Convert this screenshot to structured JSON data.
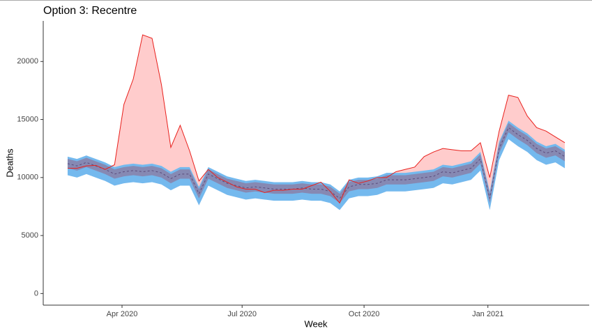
{
  "chart_data": {
    "type": "band-area",
    "title": "Option 3: Recentre",
    "xlabel": "Week",
    "ylabel": "Deaths",
    "x": [
      1,
      2,
      3,
      4,
      5,
      6,
      7,
      8,
      9,
      10,
      11,
      12,
      13,
      14,
      15,
      16,
      17,
      18,
      19,
      20,
      21,
      22,
      23,
      24,
      25,
      26,
      27,
      28,
      29,
      30,
      31,
      32,
      33,
      34,
      35,
      36,
      37,
      38,
      39,
      40,
      41,
      42,
      43,
      44,
      45,
      46,
      47,
      48,
      49,
      50,
      51,
      52,
      53,
      54
    ],
    "xlim": [
      -1.6,
      56.6
    ],
    "xticks": [
      {
        "value": 6.8,
        "label": "Apr 2020"
      },
      {
        "value": 19.6,
        "label": "Jul 2020"
      },
      {
        "value": 32.6,
        "label": "Oct 2020"
      },
      {
        "value": 45.8,
        "label": "Jan 2021"
      }
    ],
    "ylim": [
      -1000,
      23500
    ],
    "yticks": [
      0,
      5000,
      10000,
      15000,
      20000
    ],
    "actual": {
      "color": "#e8201c",
      "fill": "#ffcccc",
      "values": [
        10800,
        10800,
        11000,
        11050,
        10700,
        11100,
        16300,
        18500,
        22300,
        22000,
        18000,
        12600,
        14500,
        12300,
        9700,
        10700,
        10000,
        9600,
        9200,
        9000,
        9000,
        8700,
        8900,
        8900,
        9000,
        9000,
        9300,
        9600,
        8800,
        7800,
        9800,
        9500,
        9700,
        10000,
        10000,
        10500,
        10700,
        10900,
        11800,
        12200,
        12500,
        12400,
        12300,
        12300,
        13000,
        10000,
        14000,
        17100,
        16900,
        15300,
        14300,
        14000,
        13500,
        13000
      ]
    },
    "expected": {
      "color": "#5a4a7a",
      "values": [
        11200,
        11000,
        11300,
        11000,
        10700,
        10300,
        10500,
        10600,
        10500,
        10600,
        10400,
        9900,
        10300,
        10300,
        8600,
        10300,
        9900,
        9500,
        9300,
        9100,
        9200,
        9100,
        9000,
        9000,
        9000,
        9100,
        9000,
        9000,
        8800,
        8200,
        9200,
        9400,
        9400,
        9500,
        9800,
        9800,
        9800,
        9900,
        10000,
        10100,
        10500,
        10400,
        10600,
        10800,
        11600,
        8200,
        12500,
        14300,
        13700,
        13200,
        12500,
        12100,
        12300,
        11800
      ]
    },
    "bands": [
      {
        "color": "#74b9ee",
        "lower": [
          10200,
          10000,
          10300,
          10000,
          9700,
          9300,
          9500,
          9600,
          9500,
          9600,
          9400,
          8900,
          9300,
          9300,
          7600,
          9300,
          8900,
          8500,
          8300,
          8100,
          8200,
          8100,
          8000,
          8000,
          8000,
          8100,
          8000,
          8000,
          7800,
          7200,
          8200,
          8400,
          8400,
          8500,
          8800,
          8800,
          8800,
          8900,
          9000,
          9100,
          9500,
          9400,
          9600,
          9800,
          10600,
          7200,
          11500,
          13300,
          12700,
          12200,
          11500,
          11100,
          11300,
          10800
        ],
        "upper": [
          11800,
          11600,
          11900,
          11600,
          11300,
          10900,
          11100,
          11200,
          11100,
          11200,
          11000,
          10500,
          10900,
          10900,
          9200,
          10900,
          10500,
          10100,
          9900,
          9700,
          9800,
          9700,
          9600,
          9600,
          9600,
          9700,
          9600,
          9600,
          9400,
          8800,
          9800,
          10000,
          10000,
          10100,
          10400,
          10400,
          10400,
          10500,
          10600,
          10700,
          11100,
          11000,
          11200,
          11400,
          12200,
          8800,
          13100,
          14900,
          14300,
          13800,
          13100,
          12700,
          12900,
          12400
        ]
      },
      {
        "color": "#8a80a8",
        "lower": [
          10800,
          10600,
          10900,
          10600,
          10300,
          9900,
          10100,
          10200,
          10100,
          10200,
          10000,
          9500,
          9900,
          9900,
          8200,
          9900,
          9500,
          9100,
          8900,
          8700,
          8800,
          8700,
          8600,
          8600,
          8600,
          8700,
          8600,
          8600,
          8400,
          7800,
          8800,
          9000,
          9000,
          9100,
          9400,
          9400,
          9400,
          9500,
          9600,
          9700,
          10100,
          10000,
          10200,
          10400,
          11200,
          7800,
          12100,
          13900,
          13300,
          12800,
          12100,
          11700,
          11900,
          11400
        ],
        "upper": [
          11600,
          11400,
          11700,
          11400,
          11100,
          10700,
          10900,
          11000,
          10900,
          11000,
          10800,
          10300,
          10700,
          10700,
          9000,
          10700,
          10300,
          9900,
          9700,
          9500,
          9600,
          9500,
          9400,
          9400,
          9400,
          9500,
          9400,
          9400,
          9200,
          8600,
          9600,
          9800,
          9800,
          9900,
          10200,
          10200,
          10200,
          10300,
          10400,
          10500,
          10900,
          10800,
          11000,
          11200,
          12000,
          8600,
          12900,
          14700,
          14100,
          13600,
          12900,
          12500,
          12700,
          12200
        ]
      }
    ]
  }
}
